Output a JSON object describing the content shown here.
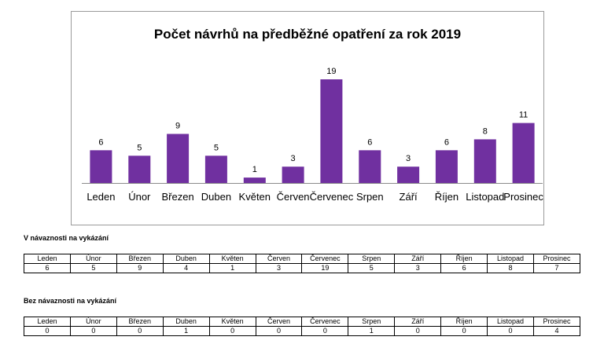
{
  "chart_data": {
    "type": "bar",
    "title": "Počet návrhů na předběžné opatření za rok  2019",
    "categories": [
      "Leden",
      "Únor",
      "Březen",
      "Duben",
      "Květen",
      "Červen",
      "Červenec",
      "Srpen",
      "Září",
      "Říjen",
      "Listopad",
      "Prosinec"
    ],
    "values": [
      6,
      5,
      9,
      5,
      1,
      3,
      19,
      6,
      3,
      6,
      8,
      11
    ],
    "ylim": [
      0,
      19
    ],
    "bar_color": "#7030a0",
    "grid": false,
    "legend": "none"
  },
  "tables": [
    {
      "title": "V návaznosti  na vykázání",
      "headers": [
        "Leden",
        "Únor",
        "Březen",
        "Duben",
        "Květen",
        "Červen",
        "Červenec",
        "Srpen",
        "Září",
        "Říjen",
        "Listopad",
        "Prosinec"
      ],
      "values": [
        "6",
        "5",
        "9",
        "4",
        "1",
        "3",
        "19",
        "5",
        "3",
        "6",
        "8",
        "7"
      ]
    },
    {
      "title": "Bez návaznosti na vykázání",
      "headers": [
        "Leden",
        "Únor",
        "Březen",
        "Duben",
        "Květen",
        "Červen",
        "Červenec",
        "Srpen",
        "Září",
        "Říjen",
        "Listopad",
        "Prosinec"
      ],
      "values": [
        "0",
        "0",
        "0",
        "1",
        "0",
        "0",
        "0",
        "1",
        "0",
        "0",
        "0",
        "4"
      ]
    }
  ]
}
